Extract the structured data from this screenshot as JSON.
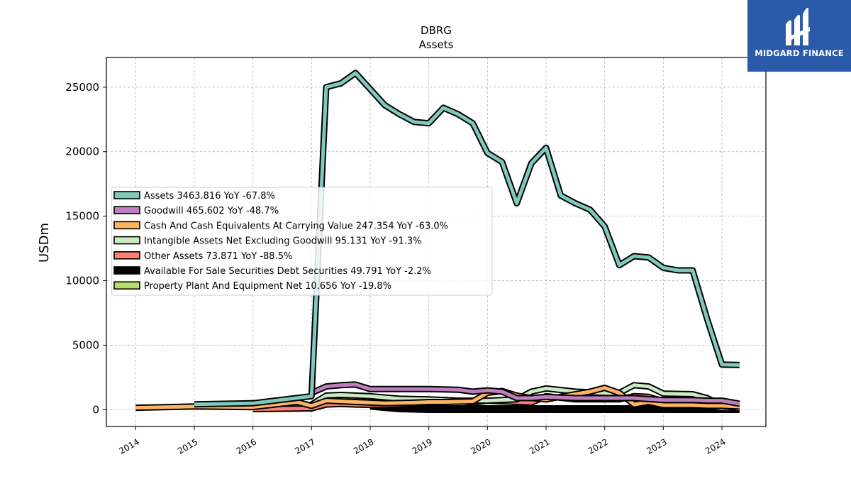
{
  "brand": {
    "name": "MIDGARD FINANCE",
    "background": "#2b5aaa"
  },
  "chart_data": {
    "type": "line",
    "title": "DBRG",
    "subtitle": "Assets",
    "xlabel": "",
    "ylabel": "USDm",
    "xlim": [
      2013.5,
      2024.75
    ],
    "ylim": [
      -1300,
      27300
    ],
    "x_ticks": [
      "2014",
      "2015",
      "2016",
      "2017",
      "2018",
      "2019",
      "2020",
      "2021",
      "2022",
      "2023",
      "2024"
    ],
    "y_ticks": [
      0,
      5000,
      10000,
      15000,
      20000,
      25000
    ],
    "grid": true,
    "legend_position": "center-left",
    "series": [
      {
        "name": "Assets",
        "latest": "3463.816",
        "yoy": "-67.8%",
        "color": "#7fc9bc",
        "width": 5,
        "points": [
          [
            2015,
            420
          ],
          [
            2016,
            500
          ],
          [
            2017,
            1050
          ],
          [
            2017.25,
            25000
          ],
          [
            2017.5,
            25300
          ],
          [
            2017.75,
            26100
          ],
          [
            2018.25,
            23600
          ],
          [
            2018.5,
            22900
          ],
          [
            2018.75,
            22300
          ],
          [
            2019,
            22200
          ],
          [
            2019.25,
            23400
          ],
          [
            2019.5,
            22900
          ],
          [
            2019.75,
            22200
          ],
          [
            2020,
            19900
          ],
          [
            2020.25,
            19200
          ],
          [
            2020.5,
            16000
          ],
          [
            2020.75,
            19100
          ],
          [
            2021,
            20300
          ],
          [
            2021.25,
            16600
          ],
          [
            2021.5,
            16000
          ],
          [
            2021.75,
            15500
          ],
          [
            2022,
            14200
          ],
          [
            2022.25,
            11200
          ],
          [
            2022.5,
            11900
          ],
          [
            2022.75,
            11800
          ],
          [
            2023,
            11000
          ],
          [
            2023.25,
            10800
          ],
          [
            2023.5,
            10800
          ],
          [
            2023.75,
            7000
          ],
          [
            2024,
            3500
          ],
          [
            2024.3,
            3463.816
          ]
        ]
      },
      {
        "name": "Goodwill",
        "latest": "465.602",
        "yoy": "-48.7%",
        "color": "#bf7fbf",
        "width": 5,
        "points": [
          [
            2017,
            1300
          ],
          [
            2017.25,
            1800
          ],
          [
            2017.5,
            1900
          ],
          [
            2017.75,
            1950
          ],
          [
            2018,
            1600
          ],
          [
            2018.5,
            1600
          ],
          [
            2019,
            1600
          ],
          [
            2019.5,
            1550
          ],
          [
            2019.75,
            1400
          ],
          [
            2020,
            1500
          ],
          [
            2020.25,
            1400
          ],
          [
            2020.5,
            900
          ],
          [
            2020.75,
            900
          ],
          [
            2021,
            1000
          ],
          [
            2021.5,
            900
          ],
          [
            2022,
            900
          ],
          [
            2022.5,
            900
          ],
          [
            2023,
            750
          ],
          [
            2023.5,
            750
          ],
          [
            2023.75,
            700
          ],
          [
            2024,
            700
          ],
          [
            2024.3,
            465.602
          ]
        ]
      },
      {
        "name": "Cash And Cash Equivalents At Carrying Value",
        "latest": "247.354",
        "yoy": "-63.0%",
        "color": "#fdb462",
        "width": 5,
        "points": [
          [
            2014,
            150
          ],
          [
            2015,
            250
          ],
          [
            2016,
            200
          ],
          [
            2016.75,
            600
          ],
          [
            2017,
            300
          ],
          [
            2017.25,
            700
          ],
          [
            2017.75,
            600
          ],
          [
            2018.25,
            500
          ],
          [
            2018.75,
            550
          ],
          [
            2019,
            600
          ],
          [
            2019.25,
            600
          ],
          [
            2019.75,
            650
          ],
          [
            2020,
            1300
          ],
          [
            2020.25,
            1450
          ],
          [
            2020.5,
            1100
          ],
          [
            2020.75,
            900
          ],
          [
            2021,
            800
          ],
          [
            2021.5,
            1200
          ],
          [
            2021.75,
            1400
          ],
          [
            2022,
            1700
          ],
          [
            2022.25,
            1300
          ],
          [
            2022.5,
            400
          ],
          [
            2022.75,
            600
          ],
          [
            2023,
            350
          ],
          [
            2023.5,
            350
          ],
          [
            2023.75,
            300
          ],
          [
            2024,
            300
          ],
          [
            2024.3,
            247.354
          ]
        ]
      },
      {
        "name": "Intangible Assets Net Excluding Goodwill",
        "latest": "95.131",
        "yoy": "-91.3%",
        "color": "#ccebc5",
        "width": 5,
        "points": [
          [
            2017,
            400
          ],
          [
            2017.25,
            1100
          ],
          [
            2017.5,
            1150
          ],
          [
            2017.75,
            1100
          ],
          [
            2018,
            1050
          ],
          [
            2018.5,
            850
          ],
          [
            2019,
            800
          ],
          [
            2019.5,
            700
          ],
          [
            2020,
            700
          ],
          [
            2020.5,
            800
          ],
          [
            2020.75,
            1400
          ],
          [
            2021,
            1650
          ],
          [
            2021.5,
            1400
          ],
          [
            2022,
            1300
          ],
          [
            2022.25,
            1300
          ],
          [
            2022.5,
            1900
          ],
          [
            2022.75,
            1800
          ],
          [
            2023,
            1250
          ],
          [
            2023.5,
            1200
          ],
          [
            2023.75,
            900
          ],
          [
            2024,
            300
          ],
          [
            2024.3,
            95.131
          ]
        ]
      },
      {
        "name": "Other Assets",
        "latest": "73.871",
        "yoy": "-88.5%",
        "color": "#fb8072",
        "width": 5,
        "points": [
          [
            2016,
            50
          ],
          [
            2017,
            100
          ],
          [
            2017.25,
            400
          ],
          [
            2017.5,
            450
          ],
          [
            2017.75,
            400
          ],
          [
            2018.25,
            350
          ],
          [
            2018.5,
            400
          ],
          [
            2019,
            500
          ],
          [
            2019.25,
            750
          ],
          [
            2019.5,
            700
          ],
          [
            2019.75,
            550
          ],
          [
            2020,
            700
          ],
          [
            2020.5,
            600
          ],
          [
            2020.75,
            550
          ],
          [
            2021,
            1050
          ],
          [
            2021.5,
            800
          ],
          [
            2022,
            800
          ],
          [
            2022.25,
            800
          ],
          [
            2022.5,
            1050
          ],
          [
            2022.75,
            1000
          ],
          [
            2023,
            650
          ],
          [
            2023.5,
            650
          ],
          [
            2023.75,
            350
          ],
          [
            2024,
            100
          ],
          [
            2024.3,
            73.871
          ]
        ]
      },
      {
        "name": "Available For Sale Securities Debt Securities",
        "latest": "49.791",
        "yoy": "-2.2%",
        "color": "#000000",
        "width": 7,
        "points": [
          [
            2018,
            300
          ],
          [
            2018.5,
            100
          ],
          [
            2019,
            50
          ],
          [
            2019.5,
            50
          ],
          [
            2020,
            50
          ],
          [
            2020.5,
            50
          ],
          [
            2021,
            50
          ],
          [
            2021.5,
            50
          ],
          [
            2022,
            50
          ],
          [
            2022.5,
            50
          ],
          [
            2023,
            50
          ],
          [
            2023.5,
            50
          ],
          [
            2024,
            50
          ],
          [
            2024.3,
            49.791
          ]
        ]
      },
      {
        "name": "Property Plant And Equipment Net",
        "latest": "10.656",
        "yoy": "-19.8%",
        "color": "#b3de69",
        "width": 5,
        "points": [
          [
            2021,
            10
          ],
          [
            2021.5,
            10
          ],
          [
            2022,
            10
          ],
          [
            2022.5,
            10
          ],
          [
            2023,
            10
          ],
          [
            2023.5,
            10
          ],
          [
            2024,
            10
          ],
          [
            2024.3,
            10.656
          ]
        ]
      }
    ]
  }
}
